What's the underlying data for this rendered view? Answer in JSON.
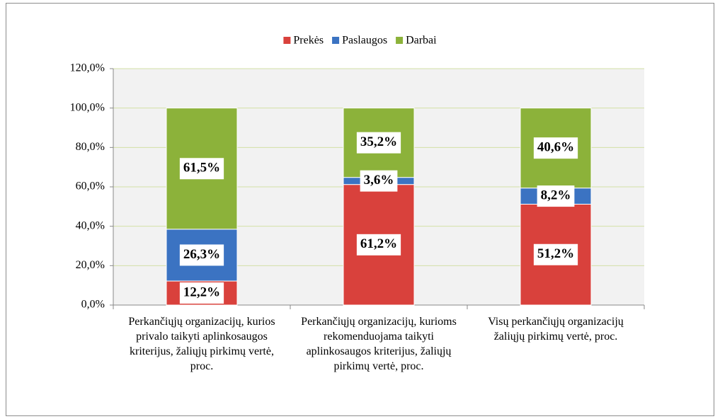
{
  "chart_data": {
    "type": "stacked_bar",
    "categories": [
      "Perkančiųjų organizacijų, kurios privalo taikyti aplinkosaugos kriterijus, žaliųjų pirkimų vertė, proc.",
      "Perkančiųjų organizacijų, kurioms rekomenduojama taikyti aplinkosaugos kriterijus, žaliųjų pirkimų vertė, proc.",
      "Visų perkančiųjų organizacijų žaliųjų pirkimų vertė, proc."
    ],
    "series": [
      {
        "name": "Prekės",
        "color": "#d9413c",
        "values": [
          12.2,
          61.2,
          51.2
        ],
        "value_labels": [
          "12,2%",
          "61,2%",
          "51,2%"
        ]
      },
      {
        "name": "Paslaugos",
        "color": "#3b73c2",
        "values": [
          26.3,
          3.6,
          8.2
        ],
        "value_labels": [
          "26,3%",
          "3,6%",
          "8,2%"
        ]
      },
      {
        "name": "Darbai",
        "color": "#8cb23a",
        "values": [
          61.5,
          35.2,
          40.6
        ],
        "value_labels": [
          "61,5%",
          "35,2%",
          "40,6%"
        ]
      }
    ],
    "ylim": [
      0,
      120
    ],
    "yticks": [
      {
        "value": 0,
        "label": "0,0%"
      },
      {
        "value": 20,
        "label": "20,0%"
      },
      {
        "value": 40,
        "label": "40,0%"
      },
      {
        "value": 60,
        "label": "60,0%"
      },
      {
        "value": 80,
        "label": "80,0%"
      },
      {
        "value": 100,
        "label": "100,0%"
      },
      {
        "value": 120,
        "label": "120,0%"
      }
    ],
    "grid": true,
    "legend": "top"
  }
}
